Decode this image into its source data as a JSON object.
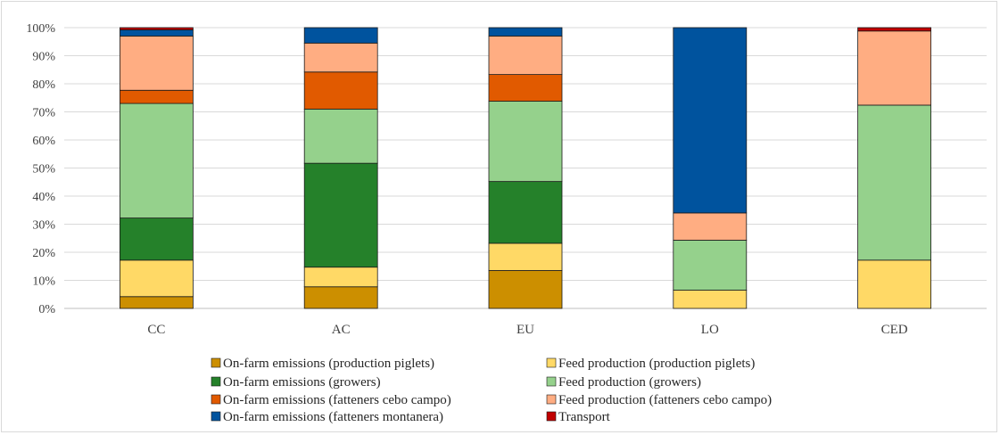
{
  "chart_data": {
    "type": "bar",
    "stacked": true,
    "categories": [
      "CC",
      "AC",
      "EU",
      "LO",
      "CED"
    ],
    "ylim": [
      0,
      100
    ],
    "yticks": [
      "0%",
      "10%",
      "20%",
      "30%",
      "40%",
      "50%",
      "60%",
      "70%",
      "80%",
      "90%",
      "100%"
    ],
    "grid": true,
    "legend_position": "bottom",
    "series": [
      {
        "name": "On-farm emissions (production piglets)",
        "color": "#cc8f00",
        "values": [
          4.2,
          7.7,
          13.5,
          0,
          0
        ]
      },
      {
        "name": "Feed production (production piglets)",
        "color": "#ffd966",
        "values": [
          13.0,
          7.0,
          9.7,
          6.5,
          17.2
        ]
      },
      {
        "name": "On-farm emissions (growers)",
        "color": "#25812a",
        "values": [
          15.0,
          37.0,
          22.0,
          0,
          0
        ]
      },
      {
        "name": "Feed production (growers)",
        "color": "#95d18c",
        "values": [
          40.8,
          19.3,
          28.6,
          17.8,
          55.2
        ]
      },
      {
        "name": "On-farm emissions (fatteners cebo campo)",
        "color": "#e15a00",
        "values": [
          4.7,
          13.2,
          9.5,
          0,
          0
        ]
      },
      {
        "name": "Feed production (fatteners cebo campo)",
        "color": "#ffad82",
        "values": [
          19.3,
          10.3,
          13.7,
          9.7,
          26.4
        ]
      },
      {
        "name": "On-farm emissions (fatteners montanera)",
        "color": "#00539e",
        "values": [
          2.2,
          5.5,
          3.0,
          66.0,
          0
        ]
      },
      {
        "name": "Transport",
        "color": "#c00000",
        "values": [
          0.8,
          0,
          0,
          0,
          1.2
        ]
      }
    ]
  }
}
